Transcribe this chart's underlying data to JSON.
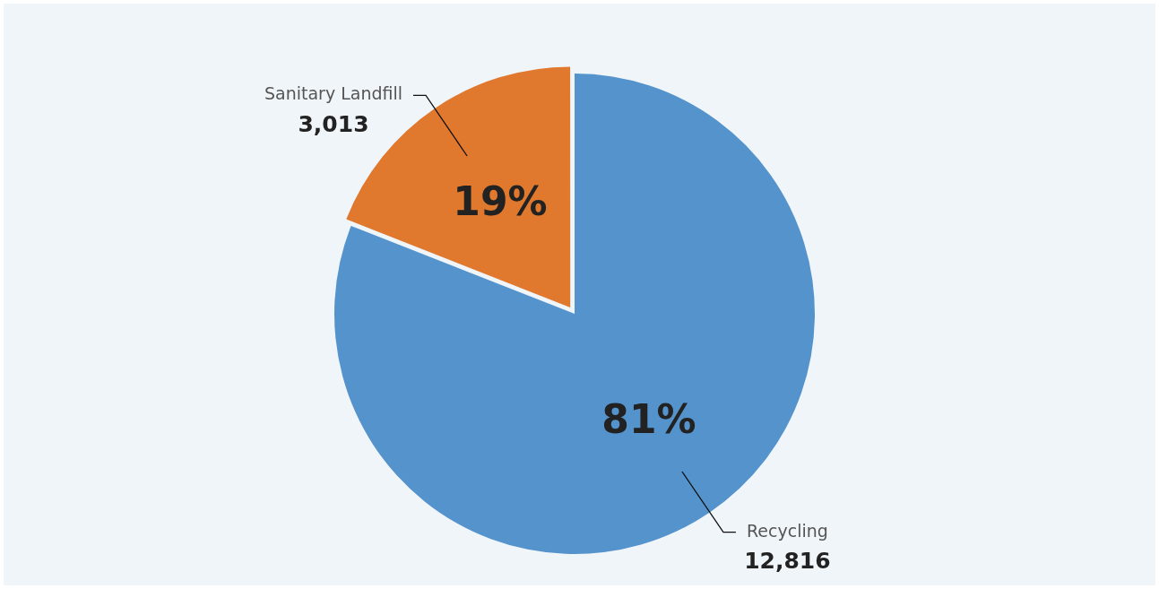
{
  "chart_data": {
    "type": "pie",
    "categories": [
      "Recycling",
      "Sanitary Landfill"
    ],
    "values": [
      12816,
      3013
    ],
    "colors": [
      "#5593cc",
      "#e0782e"
    ],
    "value_labels": [
      "12,816",
      "3,013"
    ],
    "annotations": [
      "81%",
      "19%"
    ],
    "legend": false
  }
}
